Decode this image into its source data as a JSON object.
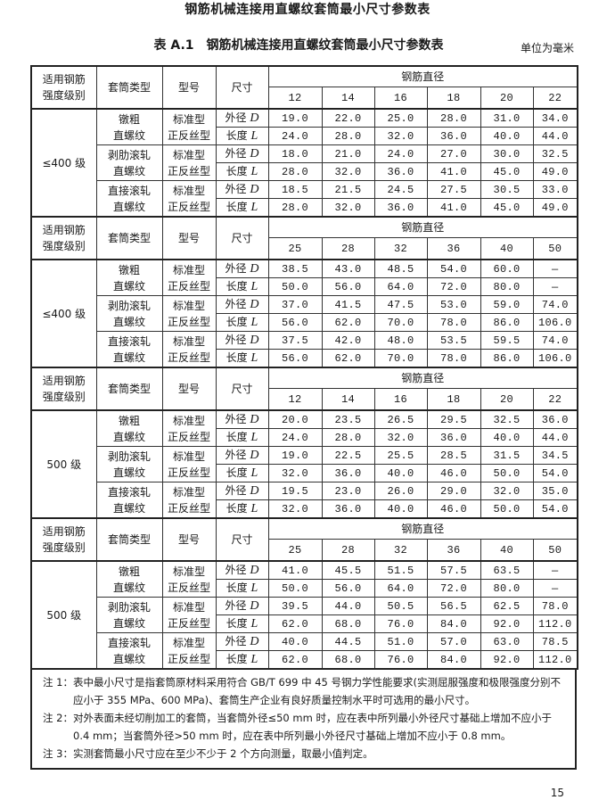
{
  "document": {
    "title": "钢筋机械连接用直螺纹套筒最小尺寸参数表",
    "table_number": "表 A.1",
    "table_title": "钢筋机械连接用直螺纹套筒最小尺寸参数表",
    "unit": "单位为毫米",
    "page_number": "15"
  },
  "headers": {
    "grade": [
      "适用钢筋",
      "强度级别"
    ],
    "sleeve_type": "套筒类型",
    "model": "型号",
    "dimension": "尺寸",
    "diameter": "钢筋直径"
  },
  "dimension_labels": {
    "D": {
      "text": "外径",
      "symbol": "D"
    },
    "L": {
      "text": "长度",
      "symbol": "L"
    }
  },
  "blocks": [
    {
      "grade": "≤400 级",
      "diameters": [
        "12",
        "14",
        "16",
        "18",
        "20",
        "22"
      ],
      "rows": [
        {
          "type": [
            "镦粗",
            "直螺纹"
          ],
          "model": [
            "标准型",
            "正反丝型"
          ],
          "D": [
            "19.0",
            "22.0",
            "25.0",
            "28.0",
            "31.0",
            "34.0"
          ],
          "L": [
            "24.0",
            "28.0",
            "32.0",
            "36.0",
            "40.0",
            "44.0"
          ]
        },
        {
          "type": [
            "剥肋滚轧",
            "直螺纹"
          ],
          "model": [
            "标准型",
            "正反丝型"
          ],
          "D": [
            "18.0",
            "21.0",
            "24.0",
            "27.0",
            "30.0",
            "32.5"
          ],
          "L": [
            "28.0",
            "32.0",
            "36.0",
            "41.0",
            "45.0",
            "49.0"
          ]
        },
        {
          "type": [
            "直接滚轧",
            "直螺纹"
          ],
          "model": [
            "标准型",
            "正反丝型"
          ],
          "D": [
            "18.5",
            "21.5",
            "24.5",
            "27.5",
            "30.5",
            "33.0"
          ],
          "L": [
            "28.0",
            "32.0",
            "36.0",
            "41.0",
            "45.0",
            "49.0"
          ]
        }
      ]
    },
    {
      "grade": "≤400 级",
      "diameters": [
        "25",
        "28",
        "32",
        "36",
        "40",
        "50"
      ],
      "rows": [
        {
          "type": [
            "镦粗",
            "直螺纹"
          ],
          "model": [
            "标准型",
            "正反丝型"
          ],
          "D": [
            "38.5",
            "43.0",
            "48.5",
            "54.0",
            "60.0",
            "—"
          ],
          "L": [
            "50.0",
            "56.0",
            "64.0",
            "72.0",
            "80.0",
            "—"
          ]
        },
        {
          "type": [
            "剥肋滚轧",
            "直螺纹"
          ],
          "model": [
            "标准型",
            "正反丝型"
          ],
          "D": [
            "37.0",
            "41.5",
            "47.5",
            "53.0",
            "59.0",
            "74.0"
          ],
          "L": [
            "56.0",
            "62.0",
            "70.0",
            "78.0",
            "86.0",
            "106.0"
          ]
        },
        {
          "type": [
            "直接滚轧",
            "直螺纹"
          ],
          "model": [
            "标准型",
            "正反丝型"
          ],
          "D": [
            "37.5",
            "42.0",
            "48.0",
            "53.5",
            "59.5",
            "74.0"
          ],
          "L": [
            "56.0",
            "62.0",
            "70.0",
            "78.0",
            "86.0",
            "106.0"
          ]
        }
      ]
    },
    {
      "grade": "500 级",
      "diameters": [
        "12",
        "14",
        "16",
        "18",
        "20",
        "22"
      ],
      "rows": [
        {
          "type": [
            "镦粗",
            "直螺纹"
          ],
          "model": [
            "标准型",
            "正反丝型"
          ],
          "D": [
            "20.0",
            "23.5",
            "26.5",
            "29.5",
            "32.5",
            "36.0"
          ],
          "L": [
            "24.0",
            "28.0",
            "32.0",
            "36.0",
            "40.0",
            "44.0"
          ]
        },
        {
          "type": [
            "剥肋滚轧",
            "直螺纹"
          ],
          "model": [
            "标准型",
            "正反丝型"
          ],
          "D": [
            "19.0",
            "22.5",
            "25.5",
            "28.5",
            "31.5",
            "34.5"
          ],
          "L": [
            "32.0",
            "36.0",
            "40.0",
            "46.0",
            "50.0",
            "54.0"
          ]
        },
        {
          "type": [
            "直接滚轧",
            "直螺纹"
          ],
          "model": [
            "标准型",
            "正反丝型"
          ],
          "D": [
            "19.5",
            "23.0",
            "26.0",
            "29.0",
            "32.0",
            "35.0"
          ],
          "L": [
            "32.0",
            "36.0",
            "40.0",
            "46.0",
            "50.0",
            "54.0"
          ]
        }
      ]
    },
    {
      "grade": "500 级",
      "diameters": [
        "25",
        "28",
        "32",
        "36",
        "40",
        "50"
      ],
      "rows": [
        {
          "type": [
            "镦粗",
            "直螺纹"
          ],
          "model": [
            "标准型",
            "正反丝型"
          ],
          "D": [
            "41.0",
            "45.5",
            "51.5",
            "57.5",
            "63.5",
            "—"
          ],
          "L": [
            "50.0",
            "56.0",
            "64.0",
            "72.0",
            "80.0",
            "—"
          ]
        },
        {
          "type": [
            "剥肋滚轧",
            "直螺纹"
          ],
          "model": [
            "标准型",
            "正反丝型"
          ],
          "D": [
            "39.5",
            "44.0",
            "50.5",
            "56.5",
            "62.5",
            "78.0"
          ],
          "L": [
            "62.0",
            "68.0",
            "76.0",
            "84.0",
            "92.0",
            "112.0"
          ]
        },
        {
          "type": [
            "直接滚轧",
            "直螺纹"
          ],
          "model": [
            "标准型",
            "正反丝型"
          ],
          "D": [
            "40.0",
            "44.5",
            "51.0",
            "57.0",
            "63.0",
            "78.5"
          ],
          "L": [
            "62.0",
            "68.0",
            "76.0",
            "84.0",
            "92.0",
            "112.0"
          ]
        }
      ]
    }
  ],
  "notes": [
    "注 1：表中最小尺寸是指套筒原材料采用符合 GB/T 699 中 45 号钢力学性能要求(实测屈服强度和极限强度分别不应小于 355 MPa、600 MPa)、套筒生产企业有良好质量控制水平时可选用的最小尺寸。",
    "注 2：对外表面未经切削加工的套筒，当套筒外径≤50 mm 时，应在表中所列最小外径尺寸基础上增加不应小于 0.4 mm；当套筒外径>50 mm 时，应在表中所列最小外径尺寸基础上增加不应小于 0.8 mm。",
    "注 3：实测套筒最小尺寸应在至少不少于 2 个方向测量，取最小值判定。"
  ]
}
